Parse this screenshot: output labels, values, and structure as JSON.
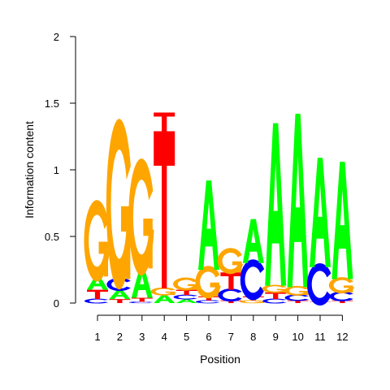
{
  "chart_data": {
    "type": "sequence-logo",
    "title": "",
    "xlabel": "Position",
    "ylabel": "Information content",
    "ylim": [
      0,
      2
    ],
    "y_ticks": [
      0,
      0.5,
      1,
      1.5,
      2
    ],
    "y_tick_labels": [
      "0",
      "0.5",
      "1",
      "1.5",
      "2"
    ],
    "positions": [
      "1",
      "2",
      "3",
      "4",
      "5",
      "6",
      "7",
      "8",
      "9",
      "10",
      "11",
      "12"
    ],
    "colors": {
      "A": "#00ff00",
      "C": "#0000ff",
      "G": "#ffa500",
      "T": "#ff0000"
    },
    "columns": [
      [
        [
          "C",
          0.03
        ],
        [
          "T",
          0.07
        ],
        [
          "A",
          0.1
        ],
        [
          "G",
          0.5
        ]
      ],
      [
        [
          "T",
          0.03
        ],
        [
          "A",
          0.07
        ],
        [
          "C",
          0.08
        ],
        [
          "G",
          1.05
        ]
      ],
      [
        [
          "C",
          0.01
        ],
        [
          "T",
          0.03
        ],
        [
          "A",
          0.22
        ],
        [
          "G",
          0.72
        ]
      ],
      [
        [
          "A",
          0.06
        ],
        [
          "G",
          0.05
        ],
        [
          "T",
          1.18
        ],
        [
          "T",
          0.14
        ]
      ],
      [
        [
          "A",
          0.03
        ],
        [
          "C",
          0.03
        ],
        [
          "T",
          0.04
        ],
        [
          "G",
          0.08
        ]
      ],
      [
        [
          "C",
          0.02
        ],
        [
          "T",
          0.03
        ],
        [
          "G",
          0.2
        ],
        [
          "A",
          0.67
        ]
      ],
      [
        [
          "T",
          0.02
        ],
        [
          "C",
          0.08
        ],
        [
          "T",
          0.13
        ],
        [
          "G",
          0.16
        ]
      ],
      [
        [
          "G",
          0.02
        ],
        [
          "T",
          0.03
        ],
        [
          "C",
          0.25
        ],
        [
          "A",
          0.33
        ]
      ],
      [
        [
          "C",
          0.03
        ],
        [
          "T",
          0.05
        ],
        [
          "G",
          0.05
        ],
        [
          "A",
          1.22
        ]
      ],
      [
        [
          "T",
          0.02
        ],
        [
          "C",
          0.04
        ],
        [
          "G",
          0.06
        ],
        [
          "A",
          1.3
        ]
      ],
      [
        [
          "T",
          0.01
        ],
        [
          "C",
          0.26
        ],
        [
          "A",
          0.82
        ]
      ],
      [
        [
          "T",
          0.02
        ],
        [
          "C",
          0.06
        ],
        [
          "G",
          0.1
        ],
        [
          "A",
          0.88
        ]
      ]
    ]
  }
}
